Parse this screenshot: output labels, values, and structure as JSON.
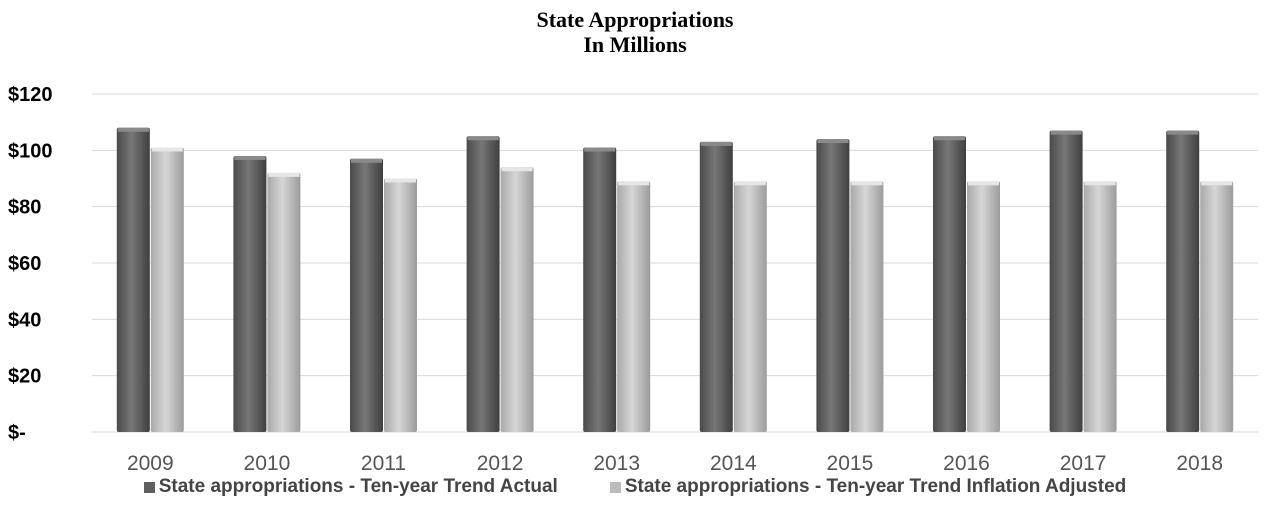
{
  "chart_data": {
    "type": "bar",
    "title": "State Appropriations",
    "subtitle": "In Millions",
    "categories": [
      "2009",
      "2010",
      "2011",
      "2012",
      "2013",
      "2014",
      "2015",
      "2016",
      "2017",
      "2018"
    ],
    "series": [
      {
        "name": "State appropriations - Ten-year Trend Actual",
        "color": "#5f5f5f",
        "values": [
          108,
          98,
          97,
          105,
          101,
          103,
          104,
          105,
          107,
          107
        ]
      },
      {
        "name": "State appropriations - Ten-year Trend Inflation Adjusted",
        "color": "#bcbcbc",
        "values": [
          101,
          92,
          90,
          94,
          89,
          89,
          89,
          89,
          89,
          89
        ]
      }
    ],
    "yticks": [
      "$-",
      "$20",
      "$40",
      "$60",
      "$80",
      "$100",
      "$120"
    ],
    "ylim": [
      0,
      120
    ],
    "grid": true,
    "legend_position": "bottom"
  }
}
